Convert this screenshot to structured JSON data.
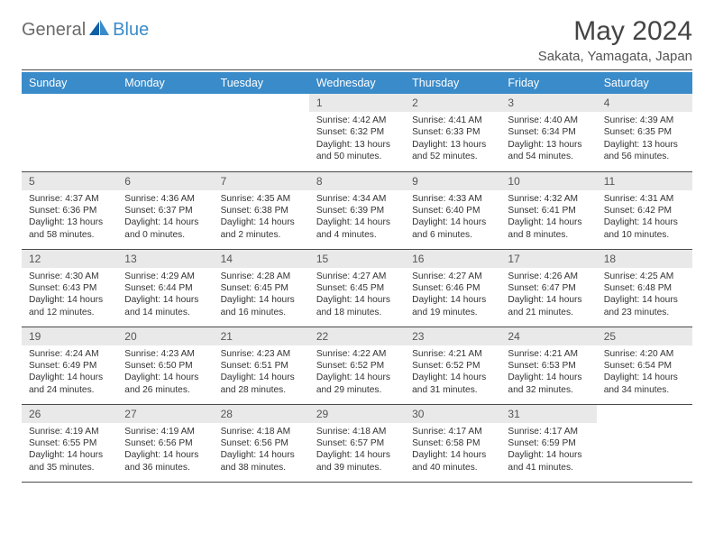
{
  "brand": {
    "word1": "General",
    "word2": "Blue"
  },
  "title": "May 2024",
  "location": "Sakata, Yamagata, Japan",
  "weekdays": [
    "Sunday",
    "Monday",
    "Tuesday",
    "Wednesday",
    "Thursday",
    "Friday",
    "Saturday"
  ],
  "colors": {
    "header_bg": "#3a8bc9",
    "header_fg": "#ffffff",
    "daynum_bg": "#e9e9e9",
    "logo_gray": "#6b6b6b",
    "logo_blue": "#3a8bc9",
    "text": "#333333",
    "rule": "#4a4a4a"
  },
  "weeks": [
    [
      {
        "n": "",
        "sunrise": "",
        "sunset": "",
        "daylight": ""
      },
      {
        "n": "",
        "sunrise": "",
        "sunset": "",
        "daylight": ""
      },
      {
        "n": "",
        "sunrise": "",
        "sunset": "",
        "daylight": ""
      },
      {
        "n": "1",
        "sunrise": "4:42 AM",
        "sunset": "6:32 PM",
        "daylight": "13 hours and 50 minutes."
      },
      {
        "n": "2",
        "sunrise": "4:41 AM",
        "sunset": "6:33 PM",
        "daylight": "13 hours and 52 minutes."
      },
      {
        "n": "3",
        "sunrise": "4:40 AM",
        "sunset": "6:34 PM",
        "daylight": "13 hours and 54 minutes."
      },
      {
        "n": "4",
        "sunrise": "4:39 AM",
        "sunset": "6:35 PM",
        "daylight": "13 hours and 56 minutes."
      }
    ],
    [
      {
        "n": "5",
        "sunrise": "4:37 AM",
        "sunset": "6:36 PM",
        "daylight": "13 hours and 58 minutes."
      },
      {
        "n": "6",
        "sunrise": "4:36 AM",
        "sunset": "6:37 PM",
        "daylight": "14 hours and 0 minutes."
      },
      {
        "n": "7",
        "sunrise": "4:35 AM",
        "sunset": "6:38 PM",
        "daylight": "14 hours and 2 minutes."
      },
      {
        "n": "8",
        "sunrise": "4:34 AM",
        "sunset": "6:39 PM",
        "daylight": "14 hours and 4 minutes."
      },
      {
        "n": "9",
        "sunrise": "4:33 AM",
        "sunset": "6:40 PM",
        "daylight": "14 hours and 6 minutes."
      },
      {
        "n": "10",
        "sunrise": "4:32 AM",
        "sunset": "6:41 PM",
        "daylight": "14 hours and 8 minutes."
      },
      {
        "n": "11",
        "sunrise": "4:31 AM",
        "sunset": "6:42 PM",
        "daylight": "14 hours and 10 minutes."
      }
    ],
    [
      {
        "n": "12",
        "sunrise": "4:30 AM",
        "sunset": "6:43 PM",
        "daylight": "14 hours and 12 minutes."
      },
      {
        "n": "13",
        "sunrise": "4:29 AM",
        "sunset": "6:44 PM",
        "daylight": "14 hours and 14 minutes."
      },
      {
        "n": "14",
        "sunrise": "4:28 AM",
        "sunset": "6:45 PM",
        "daylight": "14 hours and 16 minutes."
      },
      {
        "n": "15",
        "sunrise": "4:27 AM",
        "sunset": "6:45 PM",
        "daylight": "14 hours and 18 minutes."
      },
      {
        "n": "16",
        "sunrise": "4:27 AM",
        "sunset": "6:46 PM",
        "daylight": "14 hours and 19 minutes."
      },
      {
        "n": "17",
        "sunrise": "4:26 AM",
        "sunset": "6:47 PM",
        "daylight": "14 hours and 21 minutes."
      },
      {
        "n": "18",
        "sunrise": "4:25 AM",
        "sunset": "6:48 PM",
        "daylight": "14 hours and 23 minutes."
      }
    ],
    [
      {
        "n": "19",
        "sunrise": "4:24 AM",
        "sunset": "6:49 PM",
        "daylight": "14 hours and 24 minutes."
      },
      {
        "n": "20",
        "sunrise": "4:23 AM",
        "sunset": "6:50 PM",
        "daylight": "14 hours and 26 minutes."
      },
      {
        "n": "21",
        "sunrise": "4:23 AM",
        "sunset": "6:51 PM",
        "daylight": "14 hours and 28 minutes."
      },
      {
        "n": "22",
        "sunrise": "4:22 AM",
        "sunset": "6:52 PM",
        "daylight": "14 hours and 29 minutes."
      },
      {
        "n": "23",
        "sunrise": "4:21 AM",
        "sunset": "6:52 PM",
        "daylight": "14 hours and 31 minutes."
      },
      {
        "n": "24",
        "sunrise": "4:21 AM",
        "sunset": "6:53 PM",
        "daylight": "14 hours and 32 minutes."
      },
      {
        "n": "25",
        "sunrise": "4:20 AM",
        "sunset": "6:54 PM",
        "daylight": "14 hours and 34 minutes."
      }
    ],
    [
      {
        "n": "26",
        "sunrise": "4:19 AM",
        "sunset": "6:55 PM",
        "daylight": "14 hours and 35 minutes."
      },
      {
        "n": "27",
        "sunrise": "4:19 AM",
        "sunset": "6:56 PM",
        "daylight": "14 hours and 36 minutes."
      },
      {
        "n": "28",
        "sunrise": "4:18 AM",
        "sunset": "6:56 PM",
        "daylight": "14 hours and 38 minutes."
      },
      {
        "n": "29",
        "sunrise": "4:18 AM",
        "sunset": "6:57 PM",
        "daylight": "14 hours and 39 minutes."
      },
      {
        "n": "30",
        "sunrise": "4:17 AM",
        "sunset": "6:58 PM",
        "daylight": "14 hours and 40 minutes."
      },
      {
        "n": "31",
        "sunrise": "4:17 AM",
        "sunset": "6:59 PM",
        "daylight": "14 hours and 41 minutes."
      },
      {
        "n": "",
        "sunrise": "",
        "sunset": "",
        "daylight": ""
      }
    ]
  ],
  "labels": {
    "sunrise": "Sunrise:",
    "sunset": "Sunset:",
    "daylight": "Daylight:"
  }
}
